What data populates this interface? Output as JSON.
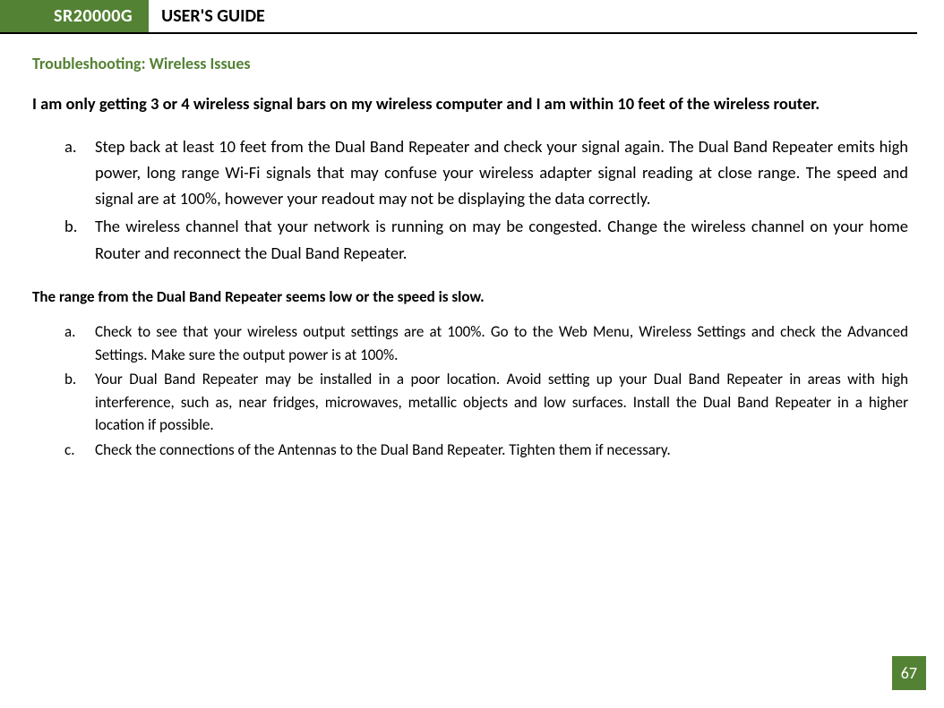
{
  "header": {
    "model": "SR20000G",
    "title": "USER'S GUIDE"
  },
  "section_title": "Troubleshooting: Wireless Issues",
  "q1": {
    "question": "I am only getting 3 or 4 wireless signal bars on my wireless computer and I am within 10 feet of the wireless router.",
    "answers": {
      "a_marker": "a.",
      "a": "Step back at least 10 feet from the Dual Band Repeater and check your signal again. The Dual Band Repeater emits high power, long range Wi-Fi signals that may confuse your wireless adapter signal reading at close range. The speed and signal are at 100%, however your readout may not be displaying the data correctly.",
      "b_marker": "b.",
      "b": "The wireless channel that your network is running on may be congested. Change the wireless channel on your home Router and reconnect the Dual Band Repeater."
    }
  },
  "q2": {
    "question": "The range from the Dual Band Repeater seems low or the speed is slow.",
    "answers": {
      "a_marker": "a.",
      "a": "Check to see that your wireless output settings are at 100%. Go to the Web Menu, Wireless Settings and check the Advanced Settings. Make sure the output power is at 100%.",
      "b_marker": "b.",
      "b": "Your Dual Band Repeater may be installed in a poor location. Avoid setting up your Dual Band Repeater in areas with high interference, such as, near fridges, microwaves, metallic objects and low surfaces. Install the Dual Band Repeater in a higher location if possible.",
      "c_marker": "c.",
      "c": "Check the connections of the Antennas to the Dual Band Repeater. Tighten them if necessary."
    }
  },
  "page_number": "67",
  "colors": {
    "accent": "#548235",
    "text": "#000000",
    "bg": "#ffffff"
  }
}
